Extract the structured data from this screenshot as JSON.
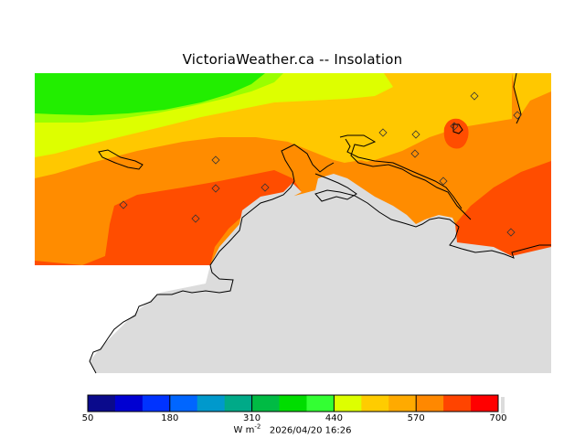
{
  "header": {
    "title": "VictoriaWeather.ca  --  Insolation"
  },
  "colorbar": {
    "min": 50,
    "max": 700,
    "tick_labels": [
      "50",
      "180",
      "310",
      "440",
      "570",
      "700"
    ],
    "tick_values": [
      50,
      180,
      310,
      440,
      570,
      700
    ],
    "unit_base": "W m",
    "unit_exp": "-2",
    "timestamp": "2026/04/20 16:26",
    "colors": [
      "#0a0a8c",
      "#0000d2",
      "#0033ff",
      "#0066ff",
      "#0099cc",
      "#00aa88",
      "#00bb44",
      "#00dd00",
      "#33ff33",
      "#ddff00",
      "#ffcc00",
      "#ffaa00",
      "#ff8800",
      "#ff4400",
      "#ff0000"
    ]
  },
  "map": {
    "land_color": "#dcdcdc",
    "coast_color": "#000000",
    "field_colors": {
      "green": "#22ee00",
      "light_green": "#99ff00",
      "yellow_green": "#ddff00",
      "yellow": "#ffc800",
      "orange": "#ff8c00",
      "red_orange": "#ff4d00"
    },
    "station_markers": 13
  }
}
